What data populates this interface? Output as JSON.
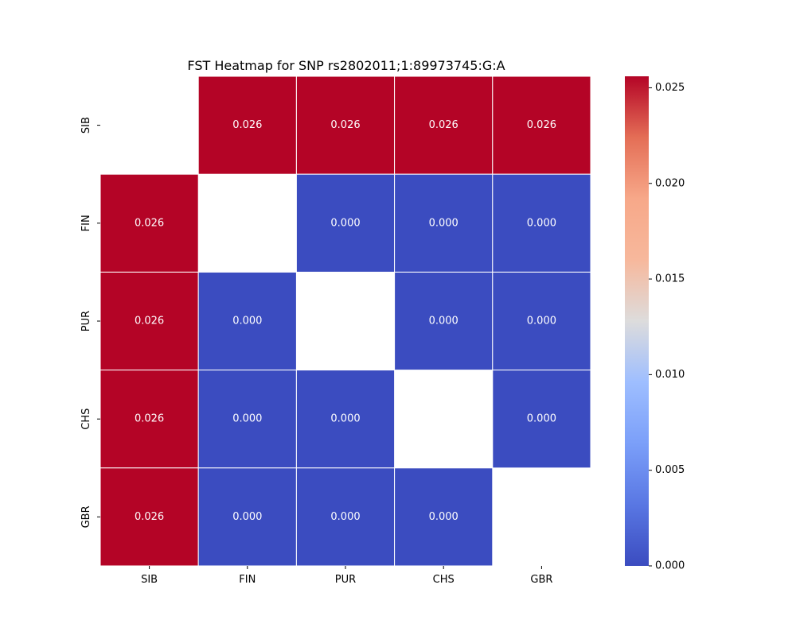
{
  "chart_data": {
    "type": "heatmap",
    "title": "FST Heatmap for SNP rs2802011;1:89973745:G:A",
    "xlabel": "",
    "ylabel": "",
    "x_categories": [
      "SIB",
      "FIN",
      "PUR",
      "CHS",
      "GBR"
    ],
    "y_categories": [
      "SIB",
      "FIN",
      "PUR",
      "CHS",
      "GBR"
    ],
    "values": [
      [
        null,
        0.026,
        0.026,
        0.026,
        0.026
      ],
      [
        0.026,
        null,
        0.0,
        0.0,
        0.0
      ],
      [
        0.026,
        0.0,
        null,
        0.0,
        0.0
      ],
      [
        0.026,
        0.0,
        0.0,
        null,
        0.0
      ],
      [
        0.026,
        0.0,
        0.0,
        0.0,
        null
      ]
    ],
    "cell_labels": [
      [
        null,
        "0.026",
        "0.026",
        "0.026",
        "0.026"
      ],
      [
        "0.026",
        null,
        "0.000",
        "0.000",
        "0.000"
      ],
      [
        "0.026",
        "0.000",
        null,
        "0.000",
        "0.000"
      ],
      [
        "0.026",
        "0.000",
        "0.000",
        null,
        "0.000"
      ],
      [
        "0.026",
        "0.000",
        "0.000",
        "0.000",
        null
      ]
    ],
    "colormap": "coolwarm",
    "color_low": "#3b4cc0",
    "color_high": "#b40426",
    "vmin": 0.0,
    "vmax": 0.0256,
    "colorbar_ticks": [
      "0.000",
      "0.005",
      "0.010",
      "0.015",
      "0.020",
      "0.025"
    ],
    "colorbar_tick_values": [
      0.0,
      0.005,
      0.01,
      0.015,
      0.02,
      0.025
    ],
    "grid": true,
    "legend": "colorbar-right"
  }
}
